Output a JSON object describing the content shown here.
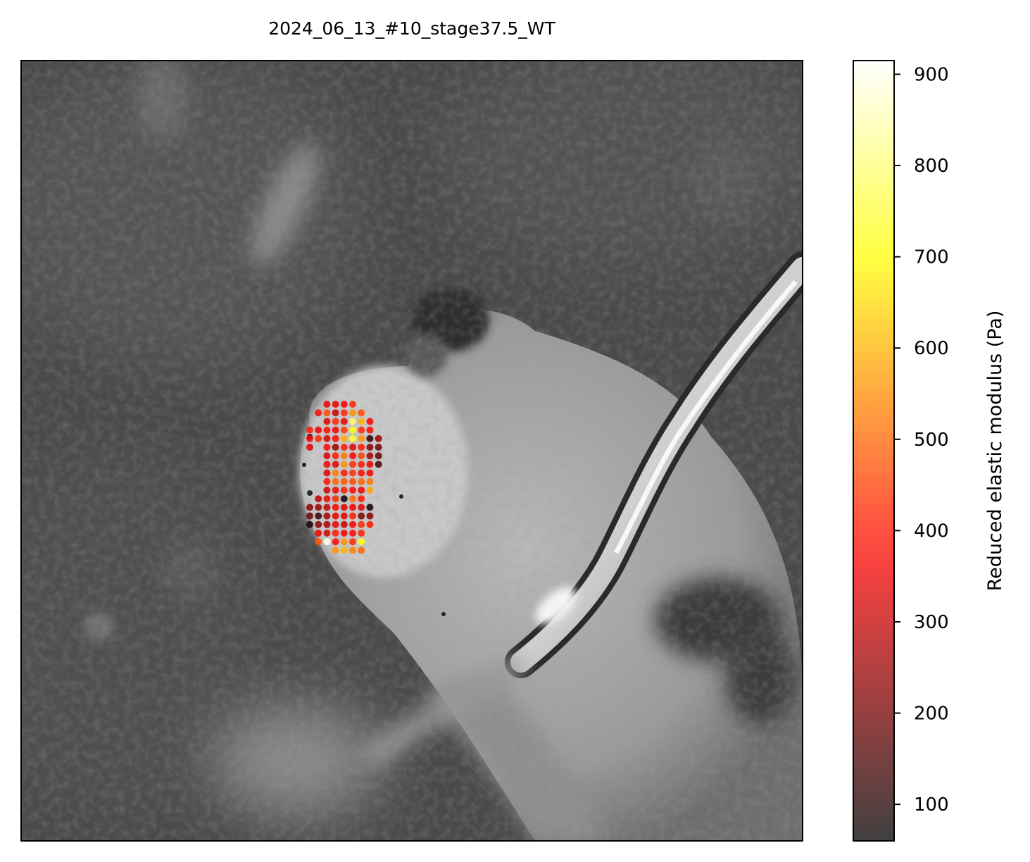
{
  "chart_data": {
    "type": "heatmap",
    "title": "2024_06_13_#10_stage37.5_WT",
    "background": "grayscale microscope image of embryo with indenter probe",
    "colorbar": {
      "label": "Reduced elastic modulus (Pa)",
      "range": [
        60,
        915
      ],
      "ticks": [
        100,
        200,
        300,
        400,
        500,
        600,
        700,
        800,
        900
      ],
      "colormap": "hot",
      "alpha": 0.75,
      "placement": "right"
    },
    "grid": {
      "x_range": [
        0,
        9
      ],
      "y_range": [
        0,
        18
      ]
    },
    "points": [
      {
        "row": 0,
        "col": 2,
        "value": 350
      },
      {
        "row": 0,
        "col": 3,
        "value": 340
      },
      {
        "row": 0,
        "col": 4,
        "value": 360
      },
      {
        "row": 0,
        "col": 5,
        "value": 420
      },
      {
        "row": 1,
        "col": 1,
        "value": 380
      },
      {
        "row": 1,
        "col": 2,
        "value": 470
      },
      {
        "row": 1,
        "col": 3,
        "value": 300
      },
      {
        "row": 1,
        "col": 4,
        "value": 420
      },
      {
        "row": 1,
        "col": 5,
        "value": 560
      },
      {
        "row": 1,
        "col": 6,
        "value": 470
      },
      {
        "row": 2,
        "col": 2,
        "value": 330
      },
      {
        "row": 2,
        "col": 3,
        "value": 420
      },
      {
        "row": 2,
        "col": 4,
        "value": 350
      },
      {
        "row": 2,
        "col": 5,
        "value": 790
      },
      {
        "row": 2,
        "col": 6,
        "value": 600
      },
      {
        "row": 2,
        "col": 7,
        "value": 370
      },
      {
        "row": 3,
        "col": 0,
        "value": 400
      },
      {
        "row": 3,
        "col": 1,
        "value": 350
      },
      {
        "row": 3,
        "col": 2,
        "value": 380
      },
      {
        "row": 3,
        "col": 3,
        "value": 360
      },
      {
        "row": 3,
        "col": 4,
        "value": 440
      },
      {
        "row": 3,
        "col": 5,
        "value": 700
      },
      {
        "row": 3,
        "col": 6,
        "value": 420
      },
      {
        "row": 3,
        "col": 7,
        "value": 380
      },
      {
        "row": 4,
        "col": 0,
        "value": 370
      },
      {
        "row": 4,
        "col": 1,
        "value": 420
      },
      {
        "row": 4,
        "col": 2,
        "value": 330
      },
      {
        "row": 4,
        "col": 3,
        "value": 380
      },
      {
        "row": 4,
        "col": 4,
        "value": 590
      },
      {
        "row": 4,
        "col": 5,
        "value": 720
      },
      {
        "row": 4,
        "col": 6,
        "value": 560
      },
      {
        "row": 4,
        "col": 7,
        "value": 120
      },
      {
        "row": 4,
        "col": 8,
        "value": 250
      },
      {
        "row": 5,
        "col": 0,
        "value": 330
      },
      {
        "row": 5,
        "col": 2,
        "value": 380
      },
      {
        "row": 5,
        "col": 3,
        "value": 250
      },
      {
        "row": 5,
        "col": 4,
        "value": 400
      },
      {
        "row": 5,
        "col": 5,
        "value": 340
      },
      {
        "row": 5,
        "col": 6,
        "value": 400
      },
      {
        "row": 5,
        "col": 7,
        "value": 220
      },
      {
        "row": 5,
        "col": 8,
        "value": 200
      },
      {
        "row": 6,
        "col": 2,
        "value": 330
      },
      {
        "row": 6,
        "col": 3,
        "value": 400
      },
      {
        "row": 6,
        "col": 4,
        "value": 520
      },
      {
        "row": 6,
        "col": 5,
        "value": 370
      },
      {
        "row": 6,
        "col": 6,
        "value": 450
      },
      {
        "row": 6,
        "col": 7,
        "value": 260
      },
      {
        "row": 6,
        "col": 8,
        "value": 180
      },
      {
        "row": 7,
        "col": 2,
        "value": 360
      },
      {
        "row": 7,
        "col": 3,
        "value": 330
      },
      {
        "row": 7,
        "col": 4,
        "value": 560
      },
      {
        "row": 7,
        "col": 5,
        "value": 420
      },
      {
        "row": 7,
        "col": 6,
        "value": 400
      },
      {
        "row": 7,
        "col": 7,
        "value": 340
      },
      {
        "row": 7,
        "col": 8,
        "value": 150
      },
      {
        "row": 8,
        "col": 2,
        "value": 340
      },
      {
        "row": 8,
        "col": 3,
        "value": 530
      },
      {
        "row": 8,
        "col": 4,
        "value": 400
      },
      {
        "row": 8,
        "col": 5,
        "value": 430
      },
      {
        "row": 8,
        "col": 6,
        "value": 380
      },
      {
        "row": 8,
        "col": 7,
        "value": 360
      },
      {
        "row": 9,
        "col": 2,
        "value": 390
      },
      {
        "row": 9,
        "col": 3,
        "value": 500
      },
      {
        "row": 9,
        "col": 4,
        "value": 480
      },
      {
        "row": 9,
        "col": 5,
        "value": 460
      },
      {
        "row": 9,
        "col": 6,
        "value": 500
      },
      {
        "row": 9,
        "col": 7,
        "value": 520
      },
      {
        "row": 10,
        "col": 2,
        "value": 310
      },
      {
        "row": 10,
        "col": 3,
        "value": 360
      },
      {
        "row": 10,
        "col": 4,
        "value": 400
      },
      {
        "row": 10,
        "col": 5,
        "value": 380
      },
      {
        "row": 10,
        "col": 6,
        "value": 350
      },
      {
        "row": 10,
        "col": 7,
        "value": 580
      },
      {
        "row": 11,
        "col": 1,
        "value": 300
      },
      {
        "row": 11,
        "col": 2,
        "value": 350
      },
      {
        "row": 11,
        "col": 3,
        "value": 420
      },
      {
        "row": 11,
        "col": 4,
        "value": 80
      },
      {
        "row": 11,
        "col": 5,
        "value": 500
      },
      {
        "row": 11,
        "col": 6,
        "value": 400
      },
      {
        "row": 12,
        "col": 0,
        "value": 230
      },
      {
        "row": 12,
        "col": 1,
        "value": 250
      },
      {
        "row": 12,
        "col": 2,
        "value": 300
      },
      {
        "row": 12,
        "col": 3,
        "value": 370
      },
      {
        "row": 12,
        "col": 4,
        "value": 340
      },
      {
        "row": 12,
        "col": 5,
        "value": 360
      },
      {
        "row": 12,
        "col": 6,
        "value": 330
      },
      {
        "row": 12,
        "col": 7,
        "value": 80
      },
      {
        "row": 13,
        "col": 0,
        "value": 200
      },
      {
        "row": 13,
        "col": 1,
        "value": 120
      },
      {
        "row": 13,
        "col": 2,
        "value": 260
      },
      {
        "row": 13,
        "col": 3,
        "value": 340
      },
      {
        "row": 13,
        "col": 4,
        "value": 330
      },
      {
        "row": 13,
        "col": 5,
        "value": 400
      },
      {
        "row": 13,
        "col": 6,
        "value": 210
      },
      {
        "row": 13,
        "col": 7,
        "value": 230
      },
      {
        "row": 14,
        "col": 0,
        "value": 90
      },
      {
        "row": 14,
        "col": 1,
        "value": 230
      },
      {
        "row": 14,
        "col": 2,
        "value": 270
      },
      {
        "row": 14,
        "col": 3,
        "value": 350
      },
      {
        "row": 14,
        "col": 4,
        "value": 300
      },
      {
        "row": 14,
        "col": 5,
        "value": 360
      },
      {
        "row": 14,
        "col": 6,
        "value": 420
      },
      {
        "row": 14,
        "col": 7,
        "value": 400
      },
      {
        "row": 15,
        "col": 1,
        "value": 350
      },
      {
        "row": 15,
        "col": 2,
        "value": 320
      },
      {
        "row": 15,
        "col": 3,
        "value": 400
      },
      {
        "row": 15,
        "col": 4,
        "value": 360
      },
      {
        "row": 15,
        "col": 5,
        "value": 380
      },
      {
        "row": 15,
        "col": 6,
        "value": 410
      },
      {
        "row": 16,
        "col": 1,
        "value": 480
      },
      {
        "row": 16,
        "col": 2,
        "value": 900
      },
      {
        "row": 16,
        "col": 3,
        "value": 380
      },
      {
        "row": 16,
        "col": 4,
        "value": 560
      },
      {
        "row": 16,
        "col": 5,
        "value": 420
      },
      {
        "row": 16,
        "col": 6,
        "value": 700
      },
      {
        "row": 17,
        "col": 3,
        "value": 560
      },
      {
        "row": 17,
        "col": 4,
        "value": 600
      },
      {
        "row": 17,
        "col": 5,
        "value": 540
      },
      {
        "row": 17,
        "col": 6,
        "value": 500
      }
    ]
  }
}
